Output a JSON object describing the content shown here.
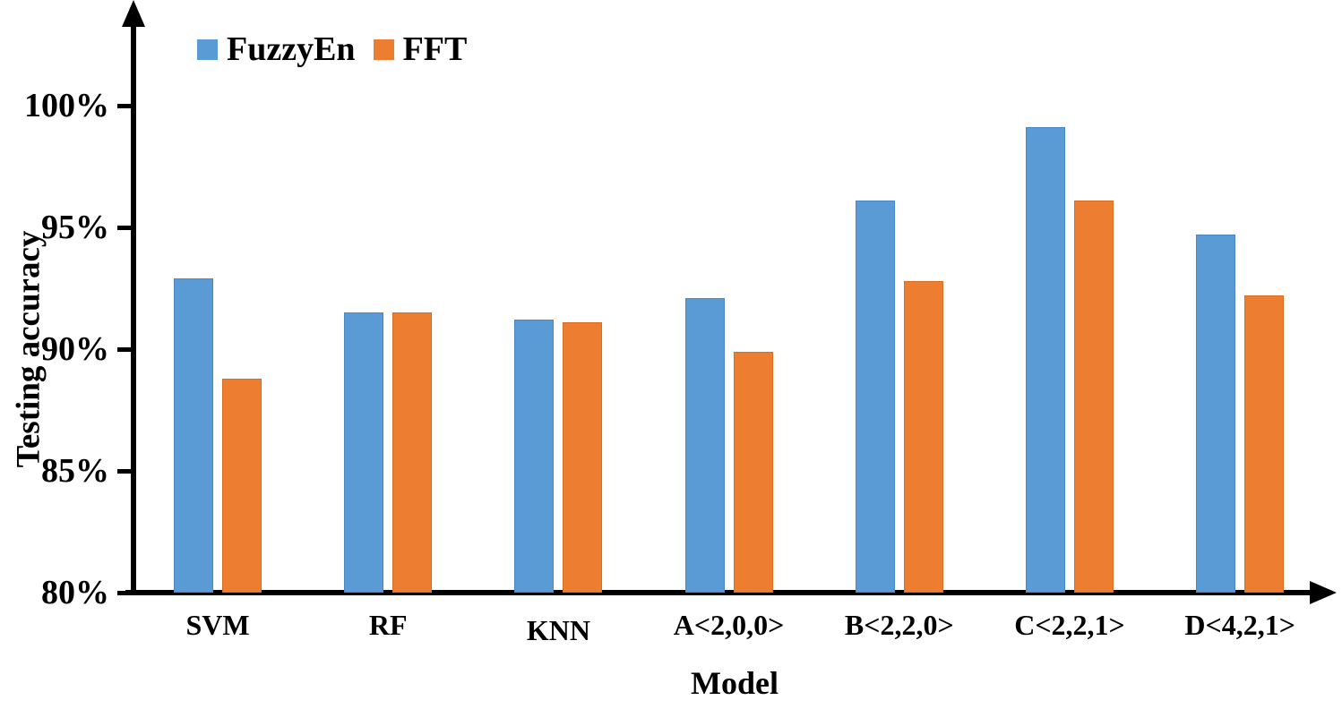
{
  "chart_data": {
    "type": "bar",
    "title": "",
    "categories": [
      "SVM",
      "RF",
      "KNN",
      "A<2,0,0>",
      "B<2,2,0>",
      "C<2,2,1>",
      "D<4,2,1>"
    ],
    "series": [
      {
        "name": "FuzzyEn",
        "color": "#5B9BD5",
        "values": [
          92.9,
          91.5,
          91.2,
          92.1,
          96.1,
          99.1,
          94.7
        ]
      },
      {
        "name": "FFT",
        "color": "#ED7D31",
        "values": [
          88.8,
          91.5,
          91.1,
          89.9,
          92.8,
          96.1,
          92.2
        ]
      }
    ],
    "xlabel": "Model",
    "ylabel": "Testing accuracy",
    "ylim": [
      80,
      100
    ],
    "y_tick_values": [
      80,
      85,
      90,
      95,
      100
    ],
    "y_tick_labels": [
      "80%",
      "85%",
      "90%",
      "95%",
      "100%"
    ],
    "grid": false,
    "legend_position": "top-left",
    "axis_color": "#000000"
  }
}
